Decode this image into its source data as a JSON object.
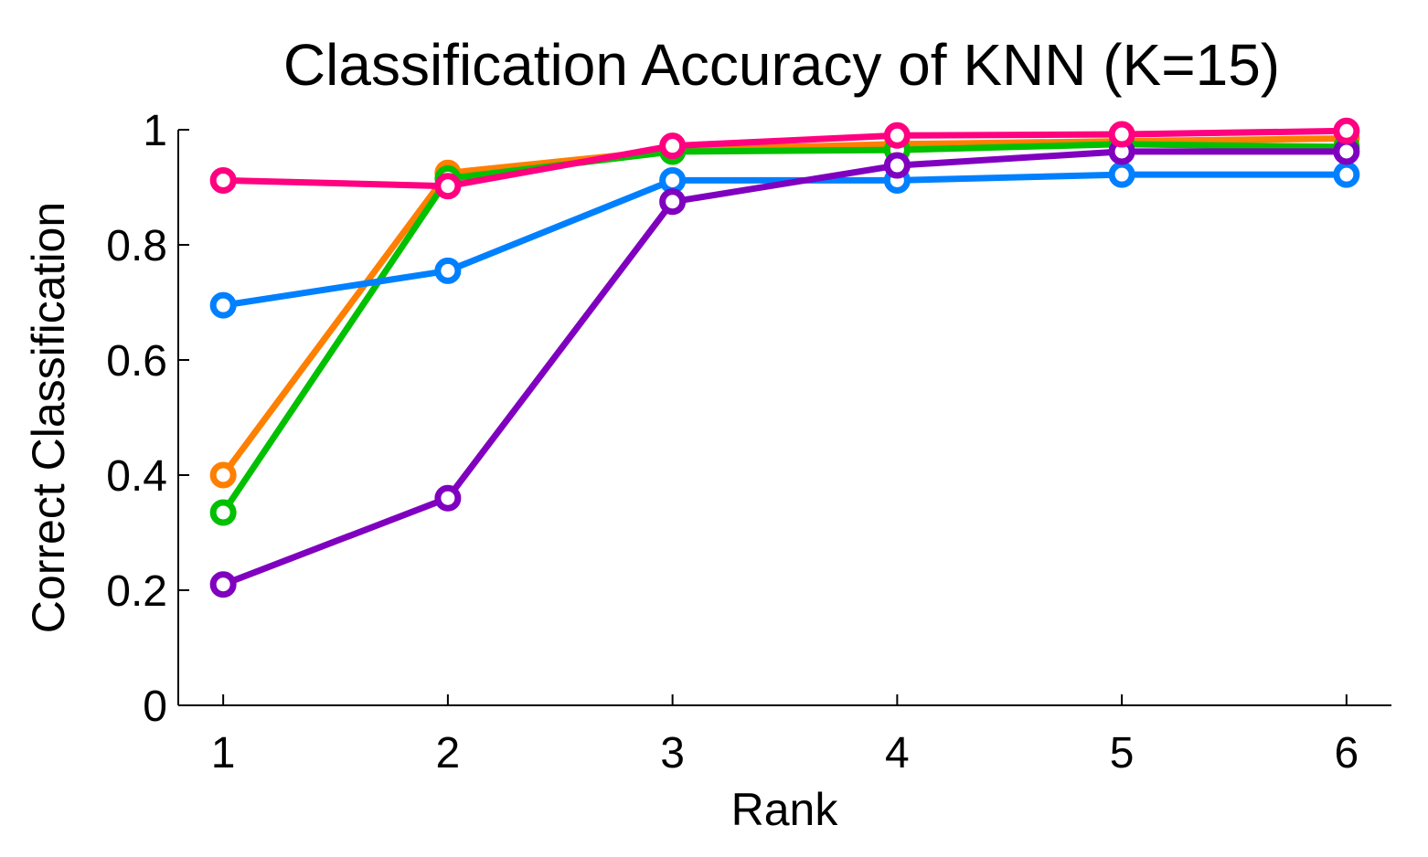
{
  "chart_data": {
    "type": "line",
    "title": "Classification Accuracy of KNN (K=15)",
    "xlabel": "Rank",
    "ylabel": "Correct Classification",
    "x": [
      1,
      2,
      3,
      4,
      5,
      6
    ],
    "xticks": [
      "1",
      "2",
      "3",
      "4",
      "5",
      "6"
    ],
    "yticks": [
      "0",
      "0.2",
      "0.4",
      "0.6",
      "0.8",
      "1"
    ],
    "ytick_values": [
      0,
      0.2,
      0.4,
      0.6,
      0.8,
      1.0
    ],
    "xlim": [
      0.8,
      6.2
    ],
    "ylim": [
      0,
      1
    ],
    "grid": false,
    "legend": "none",
    "series": [
      {
        "color": "#ff7f00",
        "values": [
          0.4,
          0.925,
          0.965,
          0.975,
          0.98,
          0.985
        ]
      },
      {
        "color": "#00c000",
        "values": [
          0.335,
          0.915,
          0.962,
          0.965,
          0.975,
          0.97
        ]
      },
      {
        "color": "#0080ff",
        "values": [
          0.695,
          0.755,
          0.912,
          0.912,
          0.922,
          0.922
        ]
      },
      {
        "color": "#8000c0",
        "values": [
          0.21,
          0.36,
          0.875,
          0.938,
          0.962,
          0.962
        ]
      },
      {
        "color": "#ff0080",
        "values": [
          0.912,
          0.902,
          0.972,
          0.99,
          0.992,
          0.998
        ]
      }
    ]
  }
}
